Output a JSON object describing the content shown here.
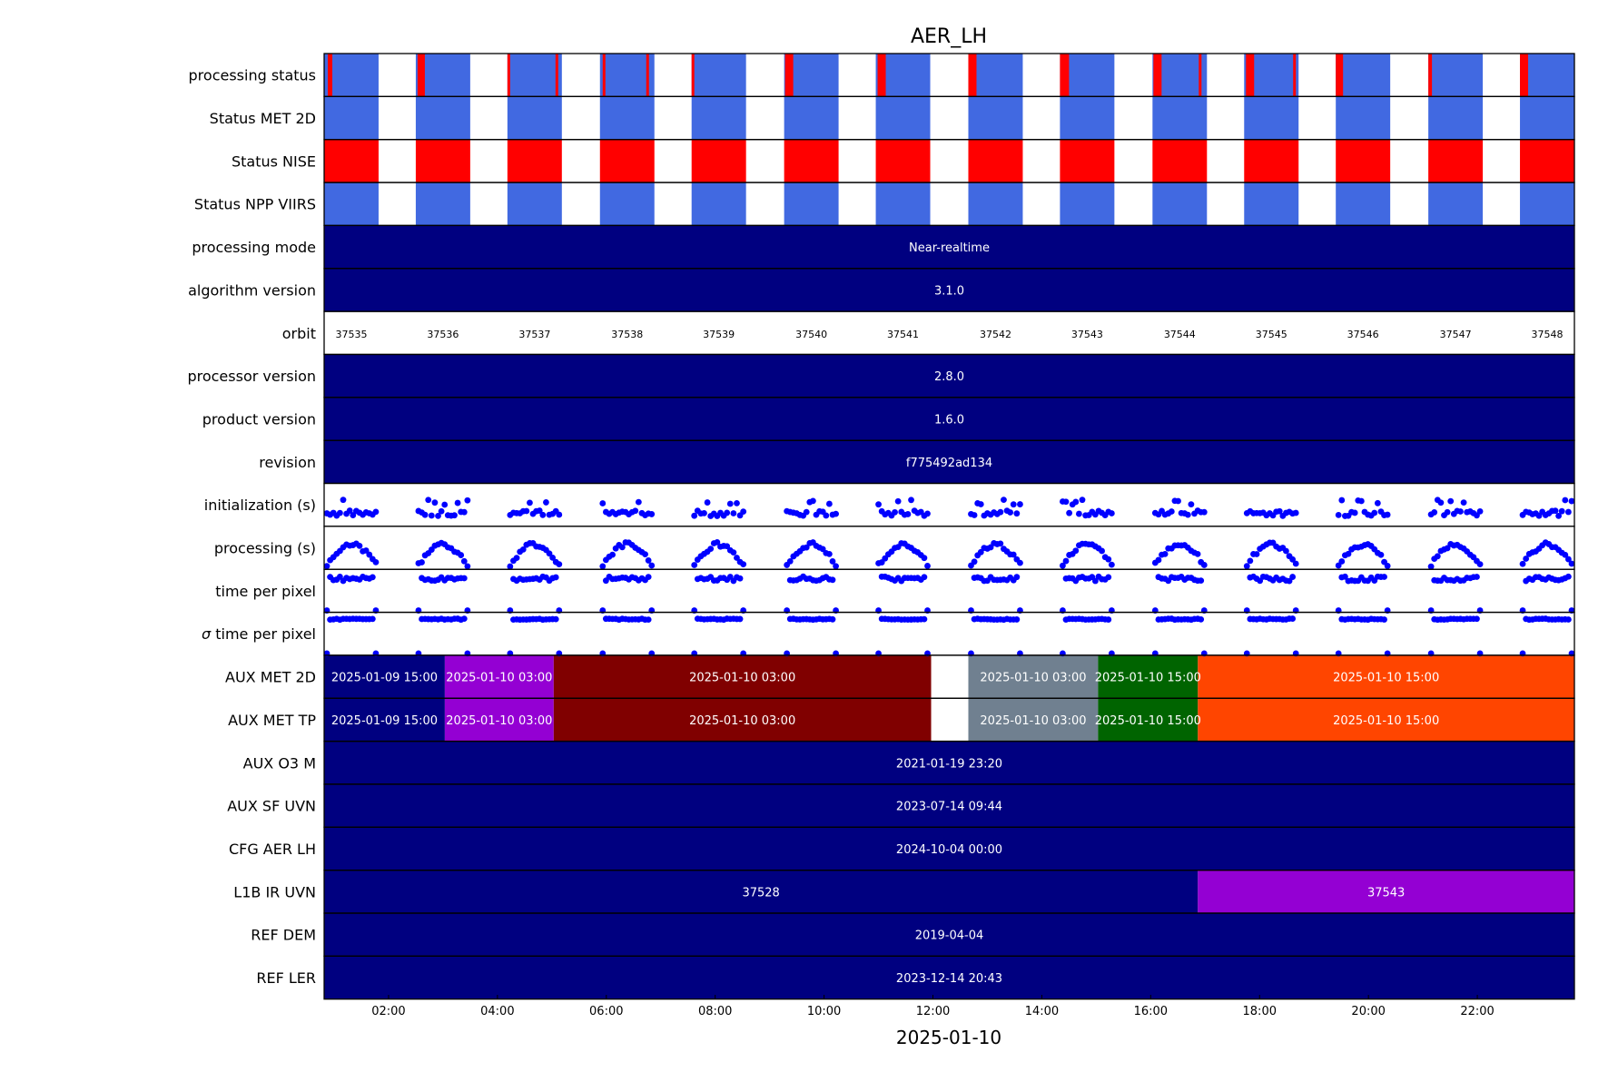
{
  "chart_data": {
    "type": "timeline",
    "title": "AER_LH",
    "xlabel": "2025-01-10",
    "x_range": [
      "2025-01-10 00:49",
      "2025-01-10 23:47"
    ],
    "x_ticks": [
      "02:00",
      "04:00",
      "06:00",
      "08:00",
      "10:00",
      "12:00",
      "14:00",
      "16:00",
      "18:00",
      "20:00",
      "22:00"
    ],
    "colors": {
      "ok": "#4169e1",
      "error": "#ff0000",
      "navy": "#000080",
      "purple": "#9400d3",
      "maroon": "#800000",
      "slate": "#708090",
      "green": "#006400",
      "orange": "#ff4500",
      "points": "#0000ff"
    },
    "row_labels": {
      "processing_status": "processing status",
      "status_met_2d": "Status MET 2D",
      "status_nise": "Status NISE",
      "status_npp_viirs": "Status NPP VIIRS",
      "processing_mode": "processing mode",
      "algorithm_version": "algorithm version",
      "orbit": "orbit",
      "processor_version": "processor version",
      "product_version": "product version",
      "revision": "revision",
      "initialization": "initialization (s)",
      "processing": "processing (s)",
      "time_per_pixel": "time per pixel",
      "sigma_time_per_pixel_symbol": "σ",
      "sigma_time_per_pixel": "time per pixel",
      "aux_met_2d": "AUX MET 2D",
      "aux_met_tp": "AUX MET TP",
      "aux_o3_m": "AUX O3   M",
      "aux_sf_uvn": "AUX SF UVN",
      "cfg_aer_lh": "CFG AER LH",
      "l1b_ir_uvn": "L1B IR UVN",
      "ref_dem": "REF DEM",
      "ref_ler": "REF LER"
    },
    "orbits": [
      {
        "orbit": "37535",
        "start": "00:49",
        "end": "01:49"
      },
      {
        "orbit": "37536",
        "start": "02:30",
        "end": "03:30"
      },
      {
        "orbit": "37537",
        "start": "04:11",
        "end": "05:11"
      },
      {
        "orbit": "37538",
        "start": "05:53",
        "end": "06:53"
      },
      {
        "orbit": "37539",
        "start": "07:34",
        "end": "08:34"
      },
      {
        "orbit": "37540",
        "start": "09:16",
        "end": "10:16"
      },
      {
        "orbit": "37541",
        "start": "10:57",
        "end": "11:57"
      },
      {
        "orbit": "37542",
        "start": "12:39",
        "end": "13:39"
      },
      {
        "orbit": "37543",
        "start": "14:20",
        "end": "15:20"
      },
      {
        "orbit": "37544",
        "start": "16:02",
        "end": "17:02"
      },
      {
        "orbit": "37545",
        "start": "17:43",
        "end": "18:43"
      },
      {
        "orbit": "37546",
        "start": "19:24",
        "end": "20:24"
      },
      {
        "orbit": "37547",
        "start": "21:06",
        "end": "22:06"
      },
      {
        "orbit": "37548",
        "start": "22:47",
        "end": "23:47"
      }
    ],
    "processing_status_errors": [
      [
        "00:53",
        "00:58"
      ],
      [
        "02:32",
        "02:40"
      ],
      [
        "04:11",
        "04:14"
      ],
      [
        "05:04",
        "05:07"
      ],
      [
        "05:56",
        "05:59"
      ],
      [
        "06:44",
        "06:47"
      ],
      [
        "07:34",
        "07:37"
      ],
      [
        "09:17",
        "09:26"
      ],
      [
        "10:59",
        "11:08"
      ],
      [
        "12:39",
        "12:48"
      ],
      [
        "14:20",
        "14:30"
      ],
      [
        "16:03",
        "16:12"
      ],
      [
        "16:53",
        "16:56"
      ],
      [
        "17:45",
        "17:54"
      ],
      [
        "18:37",
        "18:40"
      ],
      [
        "19:24",
        "19:32"
      ],
      [
        "21:06",
        "21:10"
      ],
      [
        "22:47",
        "22:56"
      ]
    ],
    "constant_rows": {
      "processing_mode": "Near-realtime",
      "algorithm_version": "3.1.0",
      "processor_version": "2.8.0",
      "product_version": "1.6.0",
      "revision": "f775492ad134",
      "aux_o3_m": "2021-01-19 23:20",
      "aux_sf_uvn": "2023-07-14 09:44",
      "cfg_aer_lh": "2024-10-04 00:00",
      "ref_dem": "2019-04-04",
      "ref_ler": "2023-12-14 20:43"
    },
    "aux_met_segments": [
      {
        "start": "00:49",
        "end": "03:02",
        "label": "2025-01-09 15:00",
        "color": "navy"
      },
      {
        "start": "03:02",
        "end": "05:02",
        "label": "2025-01-10 03:00",
        "color": "purple"
      },
      {
        "start": "05:02",
        "end": "11:58",
        "label": "2025-01-10 03:00",
        "color": "maroon"
      },
      {
        "start": "12:39",
        "end": "15:02",
        "label": "2025-01-10 03:00",
        "color": "slate"
      },
      {
        "start": "15:02",
        "end": "16:52",
        "label": "2025-01-10 15:00",
        "color": "green"
      },
      {
        "start": "16:52",
        "end": "23:47",
        "label": "2025-01-10 15:00",
        "color": "orange"
      }
    ],
    "l1b_segments": [
      {
        "start": "00:49",
        "end": "16:52",
        "label": "37528",
        "color": "navy"
      },
      {
        "start": "16:52",
        "end": "23:47",
        "label": "37543",
        "color": "purple"
      }
    ]
  }
}
